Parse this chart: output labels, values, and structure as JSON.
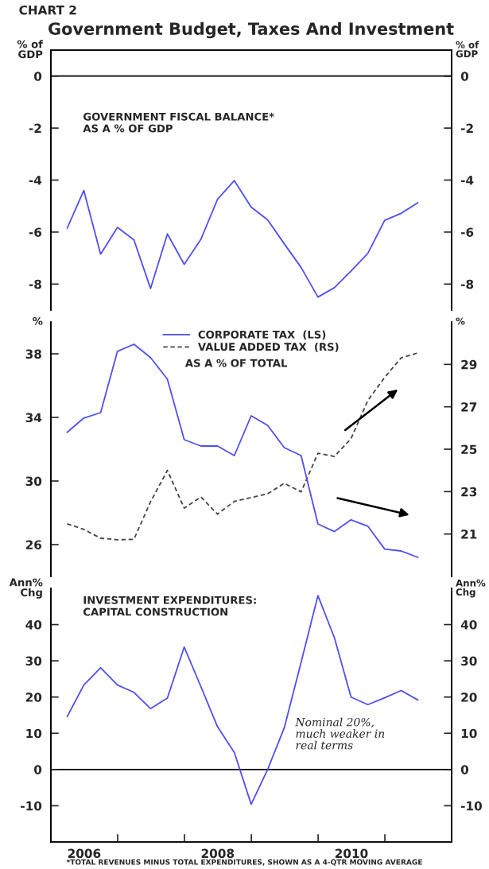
{
  "chart_data": [
    {
      "type": "line",
      "title": "CHART 2",
      "subtitle": "Government Budget, Taxes And Investment",
      "ylabel": "% of\nGDP",
      "y2label": "% of\nGDP",
      "annotations": [
        "GOVERNMENT FISCAL BALANCE*\nAS A % OF GDP"
      ],
      "x": [
        "2006-03-31",
        "2006-06-30",
        "2006-09-30",
        "2006-12-31",
        "2007-03-31",
        "2007-06-30",
        "2007-09-30",
        "2007-12-31",
        "2008-03-31",
        "2008-06-30",
        "2008-09-30",
        "2008-12-31",
        "2009-03-31",
        "2009-06-30",
        "2009-09-30",
        "2009-12-31",
        "2010-03-31",
        "2010-06-30",
        "2010-09-30",
        "2010-12-31",
        "2011-03-31",
        "2011-06-30"
      ],
      "series": [
        {
          "color": "#5050ee",
          "values": [
            -5.85,
            -4.4,
            -6.85,
            -5.82,
            -6.3,
            -8.17,
            -6.07,
            -7.24,
            -6.28,
            -4.74,
            -4.02,
            -5.04,
            -5.53,
            -6.45,
            -7.36,
            -8.5,
            -8.14,
            -7.5,
            -6.82,
            -5.55,
            -5.28,
            -4.87
          ]
        }
      ],
      "xlim": [
        "2006-01-01",
        "2012-01-01"
      ],
      "ylim": [
        -9,
        1
      ],
      "yticks": [
        0,
        -2,
        -4,
        -6,
        -8
      ],
      "y2lim": [
        -9,
        1
      ],
      "y2ticks": [
        0,
        -2,
        -4,
        -6,
        -8
      ],
      "ref_lines": [
        {
          "axis": "y",
          "value": 0,
          "color": "#000000"
        }
      ],
      "tick_labels": "y",
      "line_style": "solid"
    },
    {
      "type": "line",
      "ylabel": "%",
      "y2label": "%",
      "annotations": [
        "AS A % OF TOTAL"
      ],
      "x": [
        "2006-03-31",
        "2006-06-30",
        "2006-09-30",
        "2006-12-31",
        "2007-03-31",
        "2007-06-30",
        "2007-09-30",
        "2007-12-31",
        "2008-03-31",
        "2008-06-30",
        "2008-09-30",
        "2008-12-31",
        "2009-03-31",
        "2009-06-30",
        "2009-09-30",
        "2009-12-31",
        "2010-03-31",
        "2010-06-30",
        "2010-09-30",
        "2010-12-31",
        "2011-03-31",
        "2011-06-30"
      ],
      "series": [
        {
          "name": "CORPORATE TAX  (LS)",
          "color": "#5050ee",
          "line_style": "solid",
          "values": [
            33.06,
            33.96,
            34.3,
            38.16,
            38.6,
            37.76,
            36.4,
            32.6,
            32.2,
            32.2,
            31.6,
            34.1,
            33.5,
            32.1,
            31.6,
            27.3,
            26.82,
            27.56,
            27.16,
            25.72,
            25.6,
            25.2
          ]
        },
        {
          "name": "VALUE ADDED TAX  (RS)",
          "color": "#444444",
          "line_style": "dashed",
          "axis": "y2",
          "values": [
            21.48,
            21.22,
            20.8,
            20.73,
            20.75,
            22.52,
            24.0,
            22.22,
            22.75,
            21.94,
            22.54,
            22.72,
            22.9,
            23.39,
            22.99,
            24.81,
            24.66,
            25.5,
            27.3,
            28.39,
            29.31,
            29.54
          ]
        }
      ],
      "xlim": [
        "2006-01-01",
        "2012-01-01"
      ],
      "ylim": [
        24,
        40
      ],
      "yticks": [
        26,
        30,
        34,
        38
      ],
      "y2lim": [
        19,
        31
      ],
      "y2ticks": [
        21,
        23,
        25,
        27,
        29
      ],
      "legend": "top",
      "tick_labels": "y"
    },
    {
      "type": "line",
      "ylabel": "Ann%\nChg",
      "y2label": "Ann%\nChg",
      "annotations": [
        "INVESTMENT EXPENDITURES:\nCAPITAL CONSTRUCTION",
        "Nominal 20%,\nmuch weaker in\nreal terms",
        "*TOTAL REVENUES MINUS TOTAL EXPENDITURES, SHOWN AS A 4-QTR MOVING AVERAGE"
      ],
      "x": [
        "2006-03-31",
        "2006-06-30",
        "2006-09-30",
        "2006-12-31",
        "2007-03-31",
        "2007-06-30",
        "2007-09-30",
        "2007-12-31",
        "2008-03-31",
        "2008-06-30",
        "2008-09-30",
        "2008-12-31",
        "2009-03-31",
        "2009-06-30",
        "2009-09-30",
        "2009-12-31",
        "2010-03-31",
        "2010-06-30",
        "2010-09-30",
        "2010-12-31",
        "2011-03-31",
        "2011-06-30"
      ],
      "series": [
        {
          "color": "#5050ee",
          "values": [
            14.6,
            23.3,
            28.1,
            23.3,
            21.3,
            16.8,
            19.7,
            33.8,
            22.9,
            11.8,
            4.7,
            -9.6,
            0,
            11.5,
            29.6,
            48.0,
            36.4,
            20.0,
            17.9,
            19.8,
            21.8,
            19.2
          ]
        }
      ],
      "xlim": [
        "2006-01-01",
        "2012-01-01"
      ],
      "xticks": [
        {
          "value": "2006-07-02",
          "label": "2006"
        },
        {
          "value": "2007-01-01",
          "label": null
        },
        {
          "value": "2008-01-01",
          "label": null
        },
        {
          "value": "2008-07-01",
          "label": "2008"
        },
        {
          "value": "2009-01-01",
          "label": null
        },
        {
          "value": "2010-01-01",
          "label": null
        },
        {
          "value": "2010-07-02",
          "label": "2010"
        },
        {
          "value": "2011-01-01",
          "label": null
        }
      ],
      "ylim": [
        -20,
        50
      ],
      "yticks": [
        40,
        30,
        20,
        10,
        0,
        -10
      ],
      "y2lim": [
        -20,
        50
      ],
      "y2ticks": [
        40,
        30,
        20,
        10,
        0,
        -10
      ],
      "ref_lines": [
        {
          "axis": "y",
          "value": 0,
          "color": "#000000"
        }
      ],
      "line_style": "solid"
    }
  ]
}
